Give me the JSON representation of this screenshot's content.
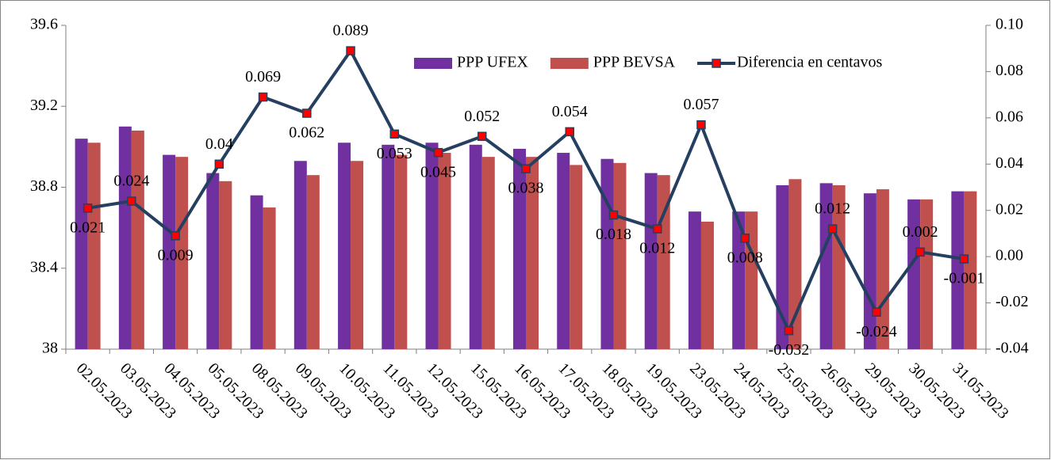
{
  "chart_data": {
    "type": "bar-line",
    "categories": [
      "02.05.2023",
      "03.05.2023",
      "04.05.2023",
      "05.05.2023",
      "08.05.2023",
      "09.05.2023",
      "10.05.2023",
      "11.05.2023",
      "12.05.2023",
      "15.05.2023",
      "16.05.2023",
      "17.05.2023",
      "18.05.2023",
      "19.05.2023",
      "23.05.2023",
      "24.05.2023",
      "25.05.2023",
      "26.05.2023",
      "29.05.2023",
      "30.05.2023",
      "31.05.2023"
    ],
    "series": [
      {
        "name": "PPP UFEX",
        "type": "bar",
        "color": "#7030a0",
        "values": [
          39.04,
          39.1,
          38.96,
          38.87,
          38.76,
          38.93,
          39.02,
          39.01,
          39.02,
          39.01,
          38.99,
          38.97,
          38.94,
          38.87,
          38.68,
          38.68,
          38.81,
          38.82,
          38.77,
          38.74,
          38.78
        ]
      },
      {
        "name": "PPP BEVSA",
        "type": "bar",
        "color": "#c0504d",
        "values": [
          39.02,
          39.08,
          38.95,
          38.83,
          38.7,
          38.86,
          38.93,
          38.96,
          38.97,
          38.95,
          38.95,
          38.91,
          38.92,
          38.86,
          38.63,
          38.68,
          38.84,
          38.81,
          38.79,
          38.74,
          38.78
        ]
      },
      {
        "name": "Diferencia en centavos",
        "type": "line",
        "axis": "y2",
        "color": "#243f60",
        "marker_color": "#ff0000",
        "values": [
          0.021,
          0.024,
          0.009,
          0.04,
          0.069,
          0.062,
          0.089,
          0.053,
          0.045,
          0.052,
          0.038,
          0.054,
          0.018,
          0.012,
          0.057,
          0.008,
          -0.032,
          0.012,
          -0.024,
          0.002,
          -0.001
        ]
      }
    ],
    "ylim": [
      38,
      39.6
    ],
    "yticks": [
      38,
      38.4,
      38.8,
      39.2,
      39.6
    ],
    "y2lim": [
      -0.04,
      0.1
    ],
    "y2ticks": [
      -0.04,
      -0.02,
      {
        "value": 0,
        "label": "0.00"
      },
      0.02,
      0.04,
      0.06,
      0.08,
      {
        "value": 0.1,
        "label": "0.10"
      }
    ],
    "legend": "upper right",
    "grid": false
  }
}
